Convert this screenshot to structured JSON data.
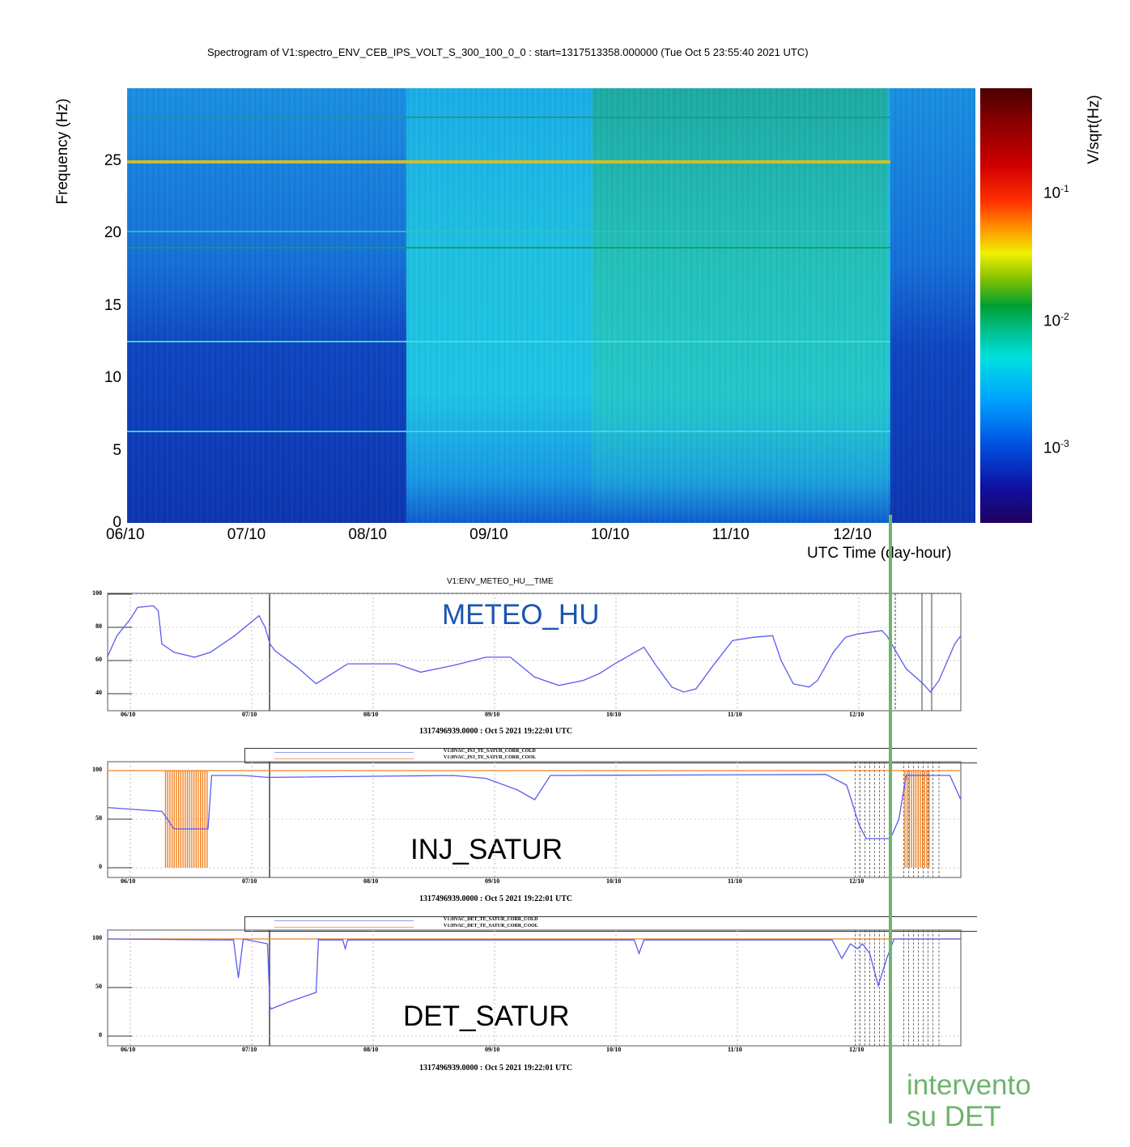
{
  "annotation": {
    "line1": "intervento",
    "line2": "su DET",
    "color": "#6db56d"
  },
  "chart_data": [
    {
      "type": "heatmap",
      "title": "Spectrogram of V1:spectro_ENV_CEB_IPS_VOLT_S_300_100_0_0 : start=1317513358.000000 (Tue Oct  5 23:55:40 2021 UTC)",
      "ylabel": "Frequency (Hz)",
      "xlabel": "UTC Time (day-hour)",
      "colorbar_label": "V/sqrt(Hz)",
      "colorbar_ticks": [
        {
          "base": "10",
          "exp": "-1"
        },
        {
          "base": "10",
          "exp": "-2"
        },
        {
          "base": "10",
          "exp": "-3"
        }
      ],
      "ylim": [
        0,
        30
      ],
      "yticks": [
        "0",
        "5",
        "10",
        "15",
        "20",
        "25"
      ],
      "xticks": [
        "06/10",
        "07/10",
        "08/10",
        "09/10",
        "10/10",
        "11/10",
        "12/10"
      ],
      "xlim_days": [
        0,
        7
      ],
      "lines_hz": [
        25,
        19,
        12.5,
        6.3,
        20.1,
        28
      ]
    },
    {
      "type": "line",
      "title": "V1:ENV_METEO_HU__TIME",
      "label": "METEO_HU",
      "label_color": "#1a56b0",
      "ylim": [
        30,
        100
      ],
      "yticks": [
        "100",
        "80",
        "60",
        "40"
      ],
      "xticks": [
        "06/10",
        "07/10",
        "08/10",
        "09/10",
        "10/10",
        "11/10",
        "12/10"
      ],
      "footer": "1317496939.0000 : Oct  5 2021 19:22:01 UTC",
      "series": [
        {
          "name": "V1:ENV_METEO_HU",
          "color": "#5b5bf0",
          "x": [
            -0.19,
            -0.11,
            0,
            0.06,
            0.19,
            0.23,
            0.26,
            0.36,
            0.53,
            0.66,
            0.86,
            1.06,
            1.11,
            1.15,
            1.19,
            1.39,
            1.53,
            1.66,
            1.79,
            1.99,
            2.19,
            2.39,
            2.66,
            2.93,
            3.13,
            3.33,
            3.53,
            3.73,
            3.86,
            3.99,
            4.23,
            4.33,
            4.46,
            4.56,
            4.66,
            4.79,
            4.96,
            5.13,
            5.29,
            5.36,
            5.46,
            5.59,
            5.66,
            5.79,
            5.89,
            5.99,
            6.19,
            6.23,
            6.39,
            6.53,
            6.59,
            6.66,
            6.79,
            6.84
          ],
          "y": [
            62,
            75,
            85,
            92,
            93,
            90,
            70,
            65,
            62,
            65,
            75,
            87,
            80,
            70,
            66,
            55,
            46,
            52,
            58,
            58,
            58,
            53,
            57,
            62,
            62,
            50,
            45,
            48,
            52,
            58,
            68,
            57,
            44,
            41,
            43,
            56,
            72,
            74,
            75,
            60,
            46,
            44,
            48,
            65,
            74,
            76,
            78,
            75,
            55,
            46,
            41,
            48,
            70,
            75
          ]
        }
      ]
    },
    {
      "type": "line",
      "label": "INJ_SATUR",
      "ylim": [
        -10,
        105
      ],
      "yticks": [
        "100",
        "50",
        "0"
      ],
      "xticks": [
        "06/10",
        "07/10",
        "08/10",
        "09/10",
        "10/10",
        "11/10",
        "12/10"
      ],
      "footer": "1317496939.0000 : Oct  5 2021 19:22:01 UTC",
      "legend": [
        "V1:HVAC_INJ_TE_SATUR_CORR_COLD",
        "V1:HVAC_INJ_TE_SATUR_CORR_COOL"
      ],
      "series": [
        {
          "name": "V1:HVAC_INJ_TE_SATUR_CORR_COLD",
          "color": "#5b5bf0",
          "x": [
            -0.19,
            0.26,
            0.36,
            0.64,
            0.67,
            0.93,
            1.13,
            2.66,
            2.93,
            3.19,
            3.33,
            3.46,
            5.73,
            5.9,
            6.0,
            6.06,
            6.26,
            6.33,
            6.39,
            6.75,
            6.84
          ],
          "y": [
            62,
            58,
            40,
            40,
            95,
            95,
            93,
            95,
            92,
            80,
            70,
            95,
            96,
            85,
            45,
            30,
            30,
            50,
            95,
            95,
            70
          ]
        },
        {
          "name": "V1:HVAC_INJ_TE_SATUR_CORR_COOL",
          "color": "#f08020",
          "x": [
            -0.19,
            6.84
          ],
          "y": [
            100,
            100
          ],
          "drop_intervals_days": [
            [
              0.29,
              0.65
            ],
            [
              6.38,
              6.59
            ]
          ]
        }
      ],
      "marker_days": [
        5.97,
        6.01,
        6.05,
        6.09,
        6.13,
        6.17,
        6.21,
        6.25,
        6.37,
        6.41,
        6.45,
        6.49,
        6.53,
        6.57,
        6.61,
        6.66
      ]
    },
    {
      "type": "line",
      "label": "DET_SATUR",
      "ylim": [
        -10,
        105
      ],
      "yticks": [
        "100",
        "50",
        "0"
      ],
      "xticks": [
        "06/10",
        "07/10",
        "08/10",
        "09/10",
        "10/10",
        "11/10",
        "12/10"
      ],
      "footer": "1317496939.0000 : Oct  5 2021 19:22:01 UTC",
      "legend": [
        "V1:HVAC_DET_TE_SATUR_CORR_COLD",
        "V1:HVAC_DET_TE_SATUR_CORR_COOL"
      ],
      "series": [
        {
          "name": "V1:HVAC_DET_TE_SATUR_CORR_COLD",
          "color": "#5b5bf0",
          "x": [
            -0.19,
            0.85,
            0.89,
            0.93,
            0.97,
            1.13,
            1.15,
            1.16,
            1.3,
            1.53,
            1.55,
            1.56,
            1.75,
            1.77,
            1.79,
            4.15,
            4.19,
            4.23,
            5.78,
            5.86,
            5.93,
            5.99,
            6.03,
            6.09,
            6.16,
            6.23,
            6.29,
            6.36,
            6.84
          ],
          "y": [
            100,
            99,
            60,
            100,
            99,
            95,
            30,
            28,
            35,
            45,
            100,
            99,
            99,
            90,
            99,
            99,
            85,
            99,
            99,
            80,
            95,
            90,
            95,
            85,
            52,
            80,
            100,
            100,
            100
          ]
        },
        {
          "name": "V1:HVAC_DET_TE_SATUR_CORR_COOL",
          "color": "#f08020",
          "x": [
            -0.19,
            6.84
          ],
          "y": [
            100,
            100
          ]
        }
      ],
      "marker_days": [
        5.97,
        6.01,
        6.05,
        6.09,
        6.13,
        6.17,
        6.21,
        6.25,
        6.37,
        6.41,
        6.45,
        6.49,
        6.53,
        6.57,
        6.61,
        6.66
      ]
    }
  ]
}
